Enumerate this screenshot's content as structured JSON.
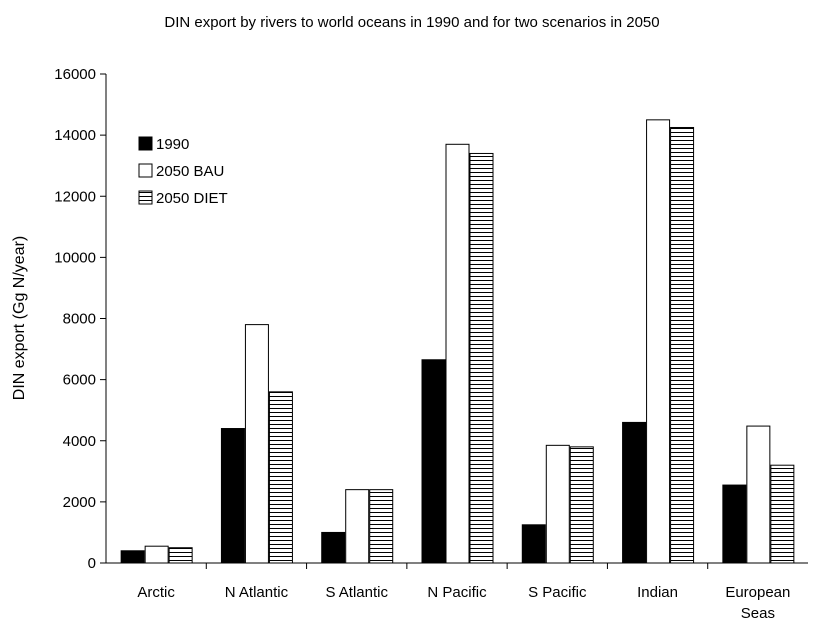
{
  "chart_data": {
    "type": "bar",
    "title": "DIN export by rivers to world oceans in 1990 and for two scenarios in 2050",
    "xlabel": "",
    "ylabel": "DIN export (Gg N/year)",
    "ylim": [
      0,
      16000
    ],
    "yticks": [
      0,
      2000,
      4000,
      6000,
      8000,
      10000,
      12000,
      14000,
      16000
    ],
    "grid": false,
    "legend_position": "top-left",
    "categories": [
      "Arctic",
      "N Atlantic",
      "S Atlantic",
      "N Pacific",
      "S Pacific",
      "Indian",
      "European Seas"
    ],
    "series": [
      {
        "name": "1990",
        "style": "solid-black",
        "values": [
          400,
          4400,
          1000,
          6650,
          1250,
          4600,
          2550
        ]
      },
      {
        "name": "2050 BAU",
        "style": "white",
        "values": [
          550,
          7800,
          2400,
          13700,
          3850,
          14500,
          4480
        ]
      },
      {
        "name": "2050 DIET",
        "style": "horizontal-stripes",
        "values": [
          500,
          5600,
          2400,
          13400,
          3800,
          14250,
          3200
        ]
      }
    ]
  }
}
